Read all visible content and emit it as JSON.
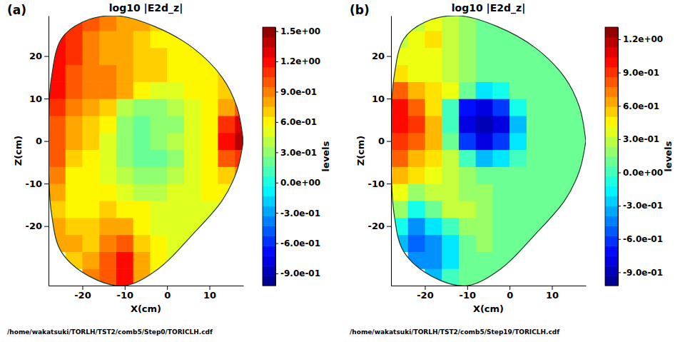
{
  "chart_data": [
    {
      "type": "heatmap",
      "panel": "(a)",
      "title": "log10 |E2d_z|",
      "x_label": "X(cm)",
      "y_label": "Z(cm)",
      "color": "jet",
      "xlim": [
        -28,
        18
      ],
      "ylim": [
        -34,
        29.5
      ],
      "xticks": [
        -20,
        -10,
        0,
        10
      ],
      "yticks": [
        -20,
        -10,
        0,
        10,
        20
      ],
      "x_edges": [
        -28,
        -24,
        -20,
        -16,
        -12,
        -8,
        -4,
        0,
        4,
        8,
        12,
        16,
        18
      ],
      "y_edges": [
        -34,
        -30,
        -26,
        -22,
        -18,
        -14,
        -10,
        -6,
        -2,
        2,
        6,
        10,
        14,
        18,
        22,
        26,
        29.5
      ],
      "values": [
        [
          null,
          null,
          0.9,
          1.0,
          1.2,
          0.8,
          0.6,
          null,
          null,
          null,
          null,
          null
        ],
        [
          null,
          0.7,
          0.8,
          1.0,
          1.2,
          0.8,
          0.6,
          0.5,
          null,
          null,
          null,
          null
        ],
        [
          0.8,
          0.8,
          0.7,
          0.9,
          1.0,
          0.7,
          0.6,
          0.5,
          0.5,
          null,
          null,
          null
        ],
        [
          0.8,
          0.7,
          0.7,
          0.8,
          0.8,
          0.6,
          0.5,
          0.5,
          0.5,
          0.5,
          null,
          null
        ],
        [
          0.7,
          0.6,
          0.6,
          0.7,
          0.6,
          0.6,
          0.5,
          0.5,
          0.5,
          0.5,
          0.6,
          null
        ],
        [
          0.8,
          0.6,
          0.6,
          0.6,
          0.5,
          0.4,
          0.4,
          0.5,
          0.5,
          0.6,
          0.6,
          0.7
        ],
        [
          0.9,
          0.6,
          0.6,
          0.5,
          0.4,
          0.3,
          0.3,
          0.4,
          0.5,
          0.6,
          0.7,
          0.9
        ],
        [
          1.0,
          0.7,
          0.6,
          0.5,
          0.3,
          0.2,
          0.2,
          0.3,
          0.5,
          0.6,
          1.0,
          1.1
        ],
        [
          1.0,
          0.8,
          0.7,
          0.5,
          0.3,
          0.2,
          0.3,
          0.4,
          0.5,
          0.6,
          1.2,
          1.4
        ],
        [
          1.0,
          0.8,
          0.7,
          0.6,
          0.3,
          0.2,
          0.3,
          0.3,
          0.5,
          0.6,
          1.1,
          1.3
        ],
        [
          1.1,
          0.9,
          0.8,
          0.7,
          0.4,
          0.3,
          0.3,
          0.4,
          0.5,
          0.6,
          0.8,
          1.0
        ],
        [
          1.2,
          1.0,
          0.9,
          0.9,
          0.8,
          0.6,
          0.5,
          0.5,
          0.6,
          0.6,
          0.7,
          0.8
        ],
        [
          1.2,
          1.0,
          0.9,
          0.9,
          0.8,
          0.7,
          0.7,
          0.6,
          0.6,
          0.6,
          0.7,
          null
        ],
        [
          1.2,
          1.1,
          0.9,
          0.8,
          0.8,
          0.7,
          0.7,
          0.6,
          0.6,
          0.6,
          null,
          null
        ],
        [
          1.2,
          1.1,
          0.9,
          0.8,
          0.8,
          0.7,
          0.6,
          0.6,
          0.6,
          null,
          null,
          null
        ],
        [
          1.2,
          1.1,
          1.0,
          0.9,
          0.8,
          0.8,
          0.7,
          0.6,
          null,
          null,
          null,
          null
        ]
      ],
      "boundary": {
        "x": [
          18,
          16.5,
          13,
          6,
          -3,
          -12,
          -20,
          -25,
          -27.3,
          -28,
          -28,
          -27.3,
          -25,
          -18,
          -10,
          -2,
          6,
          13,
          16.5,
          18
        ],
        "y": [
          0,
          8,
          15,
          22,
          27,
          29.5,
          28,
          24,
          15,
          5,
          -5,
          -17,
          -26,
          -32,
          -34,
          -30,
          -22,
          -14,
          -7,
          0
        ]
      },
      "colorbar": {
        "label": "levels",
        "range": [
          -1.02,
          1.54
        ],
        "ticks": [
          {
            "value": 1.5,
            "label": "1.5e+00"
          },
          {
            "value": 1.2,
            "label": "1.2e+00"
          },
          {
            "value": 0.9,
            "label": "9.0e-01"
          },
          {
            "value": 0.6,
            "label": "6.0e-01"
          },
          {
            "value": 0.3,
            "label": "3.0e-01"
          },
          {
            "value": 0.0,
            "label": "0.0e+00"
          },
          {
            "value": -0.3,
            "label": "-3.0e-01"
          },
          {
            "value": -0.6,
            "label": "-6.0e-01"
          },
          {
            "value": -0.9,
            "label": "-9.0e-01"
          }
        ]
      },
      "annotations": [
        "/home/wakatsuki/TORLH/TST2/comb5/Step0/TORICLH.cdf"
      ]
    },
    {
      "type": "heatmap",
      "panel": "(b)",
      "title": "log10 |E2d_z|",
      "x_label": "X(cm)",
      "y_label": "Z(cm)",
      "color": "jet",
      "xlim": [
        -28,
        18
      ],
      "ylim": [
        -34,
        29.5
      ],
      "xticks": [
        -20,
        -10,
        0,
        10
      ],
      "yticks": [
        -20,
        -10,
        0,
        10,
        20
      ],
      "x_edges": [
        -28,
        -24,
        -20,
        -16,
        -12,
        -8,
        -4,
        0,
        4,
        8,
        12,
        16,
        18
      ],
      "y_edges": [
        -34,
        -30,
        -26,
        -22,
        -18,
        -14,
        -10,
        -6,
        -2,
        2,
        6,
        10,
        14,
        18,
        22,
        26,
        29.5
      ],
      "values": [
        [
          null,
          null,
          -0.3,
          0.0,
          0.1,
          0.1,
          0.1,
          null,
          null,
          null,
          null,
          null
        ],
        [
          null,
          -0.4,
          -0.4,
          -0.2,
          0.1,
          0.1,
          0.1,
          0.1,
          null,
          null,
          null,
          null
        ],
        [
          -0.3,
          -0.5,
          -0.4,
          -0.2,
          0.1,
          0.2,
          0.1,
          0.1,
          0.1,
          null,
          null,
          null
        ],
        [
          -0.1,
          -0.4,
          -0.2,
          0.0,
          0.2,
          0.2,
          0.1,
          0.1,
          0.1,
          0.1,
          null,
          null
        ],
        [
          0.2,
          -0.1,
          0.1,
          0.3,
          0.3,
          0.2,
          0.1,
          0.1,
          0.1,
          0.1,
          0.1,
          null
        ],
        [
          0.4,
          0.2,
          0.3,
          0.3,
          0.2,
          0.2,
          0.1,
          0.1,
          0.1,
          0.1,
          0.1,
          0.1
        ],
        [
          0.6,
          0.5,
          0.4,
          0.3,
          0.2,
          0.1,
          0.1,
          0.1,
          0.1,
          0.1,
          0.1,
          0.1
        ],
        [
          0.8,
          0.6,
          0.5,
          0.3,
          0.0,
          -0.3,
          -0.2,
          0.0,
          0.1,
          0.1,
          0.1,
          0.1
        ],
        [
          0.9,
          0.8,
          0.6,
          0.1,
          -0.6,
          -0.8,
          -0.6,
          -0.2,
          0.1,
          0.1,
          0.1,
          0.1
        ],
        [
          1.0,
          0.9,
          0.6,
          0.0,
          -0.8,
          -0.9,
          -0.8,
          -0.3,
          0.1,
          0.1,
          0.1,
          0.1
        ],
        [
          1.0,
          0.8,
          0.5,
          0.0,
          -0.7,
          -0.8,
          -0.6,
          -0.1,
          0.1,
          0.1,
          0.1,
          0.1
        ],
        [
          0.8,
          0.6,
          0.5,
          0.4,
          0.1,
          -0.2,
          -0.1,
          0.1,
          0.1,
          0.1,
          0.1,
          0.1
        ],
        [
          0.5,
          0.4,
          0.4,
          0.3,
          0.2,
          0.1,
          0.1,
          0.1,
          0.1,
          0.1,
          0.1,
          null
        ],
        [
          0.4,
          0.4,
          0.4,
          0.3,
          0.2,
          0.1,
          0.1,
          0.1,
          0.1,
          0.1,
          null,
          null
        ],
        [
          0.3,
          0.4,
          0.5,
          0.3,
          0.2,
          0.1,
          0.1,
          0.1,
          0.1,
          null,
          null,
          null
        ],
        [
          0.3,
          0.3,
          0.4,
          0.3,
          0.2,
          0.1,
          0.1,
          0.1,
          null,
          null,
          null,
          null
        ]
      ],
      "boundary": {
        "x": [
          18,
          16.5,
          13,
          6,
          -3,
          -12,
          -20,
          -25,
          -27.3,
          -28,
          -28,
          -27.3,
          -25,
          -18,
          -10,
          -2,
          6,
          13,
          16.5,
          18
        ],
        "y": [
          0,
          8,
          15,
          22,
          27,
          29.5,
          28,
          24,
          15,
          5,
          -5,
          -17,
          -26,
          -32,
          -34,
          -30,
          -22,
          -14,
          -7,
          0
        ]
      },
      "colorbar": {
        "label": "levels",
        "range": [
          -1.02,
          1.31
        ],
        "ticks": [
          {
            "value": 1.2,
            "label": "1.2e+00"
          },
          {
            "value": 0.9,
            "label": "9.0e-01"
          },
          {
            "value": 0.6,
            "label": "6.0e-01"
          },
          {
            "value": 0.3,
            "label": "3.0e-01"
          },
          {
            "value": 0.0,
            "label": "0.0e+00"
          },
          {
            "value": -0.3,
            "label": "-3.0e-01"
          },
          {
            "value": -0.6,
            "label": "-6.0e-01"
          },
          {
            "value": -0.9,
            "label": "-9.0e-01"
          }
        ]
      },
      "annotations": [
        "/home/wakatsuki/TORLH/TST2/comb5/Step19/TORICLH.cdf"
      ]
    }
  ]
}
